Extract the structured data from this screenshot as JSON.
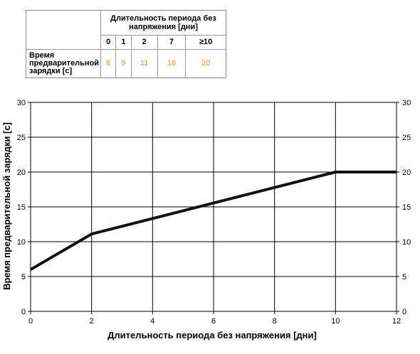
{
  "table": {
    "header_title": "Длительность периода без напряжения [дни]",
    "columns": [
      "0",
      "1",
      "2",
      "7",
      "≥10"
    ],
    "row_label": "Время предварительной зарядки [с]",
    "row_values": [
      "6",
      "9",
      "11",
      "16",
      "20"
    ],
    "value_color": "#f08a2c"
  },
  "chart_data": {
    "type": "line",
    "title": "",
    "xlabel": "Длительность периода без напряжения [дни]",
    "ylabel": "Время предварительной зарядки [с]",
    "xlim": [
      0,
      12
    ],
    "ylim": [
      0,
      30
    ],
    "x_ticks": [
      0,
      2,
      4,
      6,
      8,
      10,
      12
    ],
    "y_ticks": [
      0,
      5,
      10,
      15,
      20,
      25,
      30
    ],
    "secondary_y_axis": true,
    "grid": true,
    "legend": "none",
    "series": [
      {
        "x": [
          0,
          2,
          10,
          12
        ],
        "y": [
          6,
          11.1,
          20,
          20
        ],
        "color": "#111111"
      }
    ]
  }
}
